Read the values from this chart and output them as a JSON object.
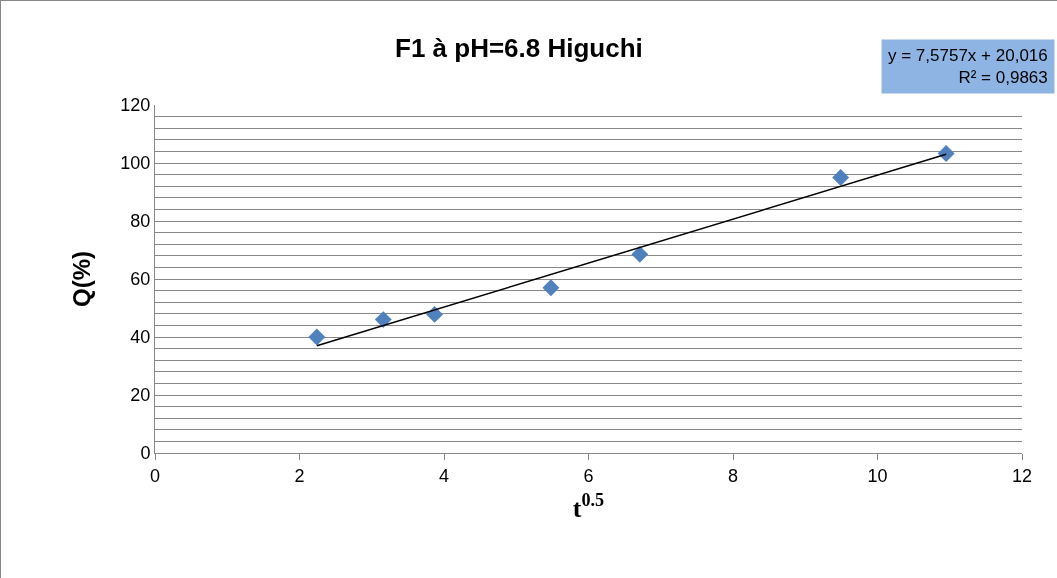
{
  "chart_data": {
    "type": "scatter",
    "title": "F1 à pH=6.8 Higuchi",
    "xlabel": "t$^{0.5}$",
    "ylabel": "Q(%)",
    "annotations": [
      "y = 7,5757x + 20,016\nR² = 0,9863"
    ],
    "xlim": [
      0,
      12
    ],
    "xticks": [
      0,
      2,
      4,
      6,
      8,
      10,
      12
    ],
    "ylim": [
      0,
      120
    ],
    "yticks": [
      0,
      {
        "value": 4,
        "label": null
      },
      {
        "value": 8,
        "label": null
      },
      {
        "value": 12,
        "label": null
      },
      {
        "value": 16,
        "label": null
      },
      20,
      {
        "value": 24,
        "label": null
      },
      {
        "value": 28,
        "label": null
      },
      {
        "value": 32,
        "label": null
      },
      {
        "value": 36,
        "label": null
      },
      40,
      {
        "value": 44,
        "label": null
      },
      {
        "value": 48,
        "label": null
      },
      {
        "value": 52,
        "label": null
      },
      {
        "value": 56,
        "label": null
      },
      60,
      {
        "value": 64,
        "label": null
      },
      {
        "value": 68,
        "label": null
      },
      {
        "value": 72,
        "label": null
      },
      {
        "value": 76,
        "label": null
      },
      80,
      {
        "value": 84,
        "label": null
      },
      {
        "value": 88,
        "label": null
      },
      {
        "value": 92,
        "label": null
      },
      {
        "value": 96,
        "label": null
      },
      100,
      {
        "value": 104,
        "label": null
      },
      {
        "value": 108,
        "label": null
      },
      {
        "value": 112,
        "label": null
      },
      {
        "value": 116,
        "label": null
      },
      120
    ],
    "grid": "y",
    "marker": "diamond",
    "series": [
      {
        "type": "scatter",
        "color": "#4f81bd",
        "x": [
          2.24,
          3.16,
          3.87,
          5.48,
          6.71,
          9.49,
          10.95
        ],
        "values": [
          40,
          46,
          47.8,
          57,
          68.5,
          95,
          103.3
        ]
      },
      {
        "type": "line",
        "color": "#000000",
        "marker": "none",
        "line_style": "solid",
        "x": [
          2.24,
          10.95
        ],
        "values": [
          37,
          103
        ]
      }
    ]
  }
}
